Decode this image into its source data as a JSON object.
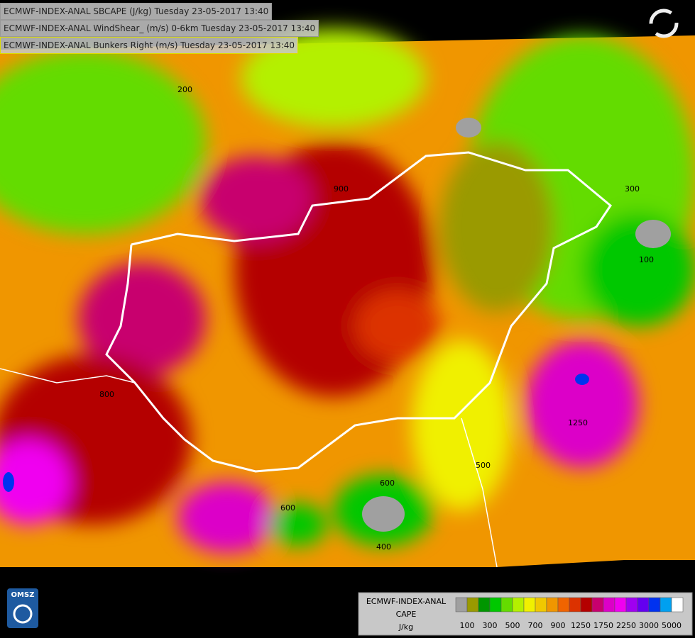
{
  "header": {
    "lines": [
      "ECMWF-INDEX-ANAL SBCAPE (J/kg) Tuesday 23-05-2017 13:40",
      "ECMWF-INDEX-ANAL WindShear_ (m/s) 0-6km Tuesday 23-05-2017 13:40",
      "ECMWF-INDEX-ANAL Bunkers Right (m/s) Tuesday 23-05-2017 13:40"
    ]
  },
  "logo": "OMSZ",
  "legend": {
    "title": "ECMWF-INDEX-ANAL",
    "parameter": "CAPE",
    "unit": "J/kg",
    "colors": [
      "#a0a0a0",
      "#9a9a00",
      "#009600",
      "#00c800",
      "#64dc00",
      "#b4f000",
      "#f0f000",
      "#f0c800",
      "#f09600",
      "#f06400",
      "#dc3200",
      "#b40000",
      "#c8006e",
      "#dc00c8",
      "#f000f0",
      "#a000f0",
      "#6400f0",
      "#0032f0",
      "#00a0f0",
      "#ffffff"
    ],
    "labels": [
      "100",
      "300",
      "500",
      "700",
      "900",
      "1250",
      "1750",
      "2250",
      "3000",
      "5000"
    ]
  },
  "map": {
    "contour_labels": [
      "900",
      "600",
      "400",
      "200",
      "1250",
      "500",
      "100",
      "300",
      "800",
      "600"
    ]
  }
}
